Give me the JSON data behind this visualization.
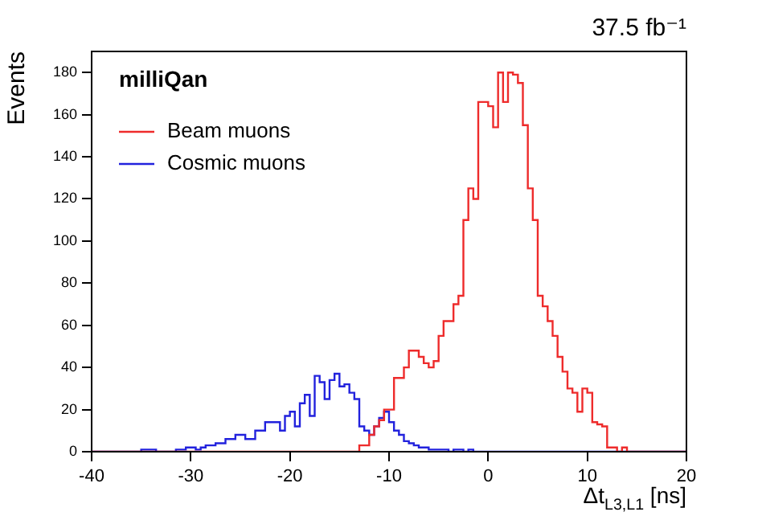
{
  "chart_data": {
    "type": "histogram",
    "title": "37.5 fb⁻¹",
    "xlabel": "Δt$_{L3,L1}$ [ns]",
    "ylabel": "Events",
    "annotations": [
      "milliQan"
    ],
    "bins": [
      -40,
      -39.5,
      -39,
      -38.5,
      -38,
      -37.5,
      -37,
      -36.5,
      -36,
      -35.5,
      -35,
      -34.5,
      -34,
      -33.5,
      -33,
      -32.5,
      -32,
      -31.5,
      -31,
      -30.5,
      -30,
      -29.5,
      -29,
      -28.5,
      -28,
      -27.5,
      -27,
      -26.5,
      -26,
      -25.5,
      -25,
      -24.5,
      -24,
      -23.5,
      -23,
      -22.5,
      -22,
      -21.5,
      -21,
      -20.5,
      -20,
      -19.5,
      -19,
      -18.5,
      -18,
      -17.5,
      -17,
      -16.5,
      -16,
      -15.5,
      -15,
      -14.5,
      -14,
      -13.5,
      -13,
      -12.5,
      -12,
      -11.5,
      -11,
      -10.5,
      -10,
      -9.5,
      -9,
      -8.5,
      -8,
      -7.5,
      -7,
      -6.5,
      -6,
      -5.5,
      -5,
      -4.5,
      -4,
      -3.5,
      -3,
      -2.5,
      -2,
      -1.5,
      -1,
      -0.5,
      0,
      0.5,
      1,
      1.5,
      2,
      2.5,
      3,
      3.5,
      4,
      4.5,
      5,
      5.5,
      6,
      6.5,
      7,
      7.5,
      8,
      8.5,
      9,
      9.5,
      10,
      10.5,
      11,
      11.5,
      12,
      12.5,
      13,
      13.5,
      14,
      14.5,
      15,
      15.5,
      16,
      16.5,
      17,
      17.5,
      18,
      18.5,
      19,
      19.5,
      20
    ],
    "series": [
      {
        "name": "Beam muons",
        "color": "#ee2b2b",
        "values": [
          0,
          0,
          0,
          0,
          0,
          0,
          0,
          0,
          0,
          0,
          0,
          0,
          0,
          0,
          0,
          0,
          0,
          0,
          0,
          0,
          0,
          0,
          0,
          0,
          0,
          0,
          0,
          0,
          0,
          0,
          0,
          0,
          0,
          0,
          0,
          0,
          0,
          0,
          0,
          0,
          0,
          0,
          0,
          0,
          0,
          0,
          0,
          0,
          0,
          0,
          0,
          0,
          0,
          0,
          3,
          3,
          8,
          12,
          15,
          20,
          20,
          35,
          35,
          40,
          48,
          48,
          45,
          42,
          40,
          43,
          55,
          62,
          62,
          70,
          74,
          110,
          125,
          120,
          166,
          166,
          164,
          154,
          180,
          166,
          180,
          179,
          175,
          155,
          125,
          110,
          74,
          69,
          62,
          55,
          45,
          38,
          30,
          28,
          19,
          30,
          28,
          14,
          13,
          12,
          2,
          2,
          0,
          2,
          0,
          0,
          0,
          0,
          0,
          0,
          0,
          0,
          0,
          0,
          0,
          0
        ]
      },
      {
        "name": "Cosmic muons",
        "color": "#2222dd",
        "values": [
          0,
          0,
          0,
          0,
          0,
          0,
          0,
          0,
          0,
          0,
          1,
          1,
          1,
          0,
          0,
          0,
          0,
          1,
          1,
          2,
          2,
          1,
          2,
          3,
          3,
          4,
          4,
          6,
          6,
          8,
          8,
          6,
          6,
          10,
          10,
          14,
          14,
          14,
          10,
          17,
          19,
          12,
          23,
          27,
          17,
          36,
          33,
          25,
          34,
          37,
          31,
          32,
          28,
          25,
          12,
          10,
          8,
          12,
          16,
          19,
          14,
          10,
          8,
          5,
          4,
          3,
          2,
          2,
          1,
          1,
          1,
          1,
          0,
          1,
          1,
          0,
          1,
          0,
          0,
          0,
          0,
          0,
          0,
          0,
          0,
          0,
          0,
          0,
          0,
          0,
          0,
          0,
          0,
          0,
          0,
          0,
          0,
          0,
          0,
          0,
          0,
          0,
          0,
          0,
          0,
          0,
          0,
          0,
          0,
          0,
          0,
          0,
          0,
          0,
          0,
          0,
          0,
          0,
          0,
          0
        ]
      }
    ],
    "xlim": [
      -40,
      20
    ],
    "xticks": [
      -40,
      -30,
      -20,
      -10,
      0,
      10,
      20
    ],
    "ylim": [
      0,
      190
    ],
    "yticks": [
      0,
      20,
      40,
      60,
      80,
      100,
      120,
      140,
      160,
      180
    ],
    "grid": false,
    "legend": "top left"
  }
}
